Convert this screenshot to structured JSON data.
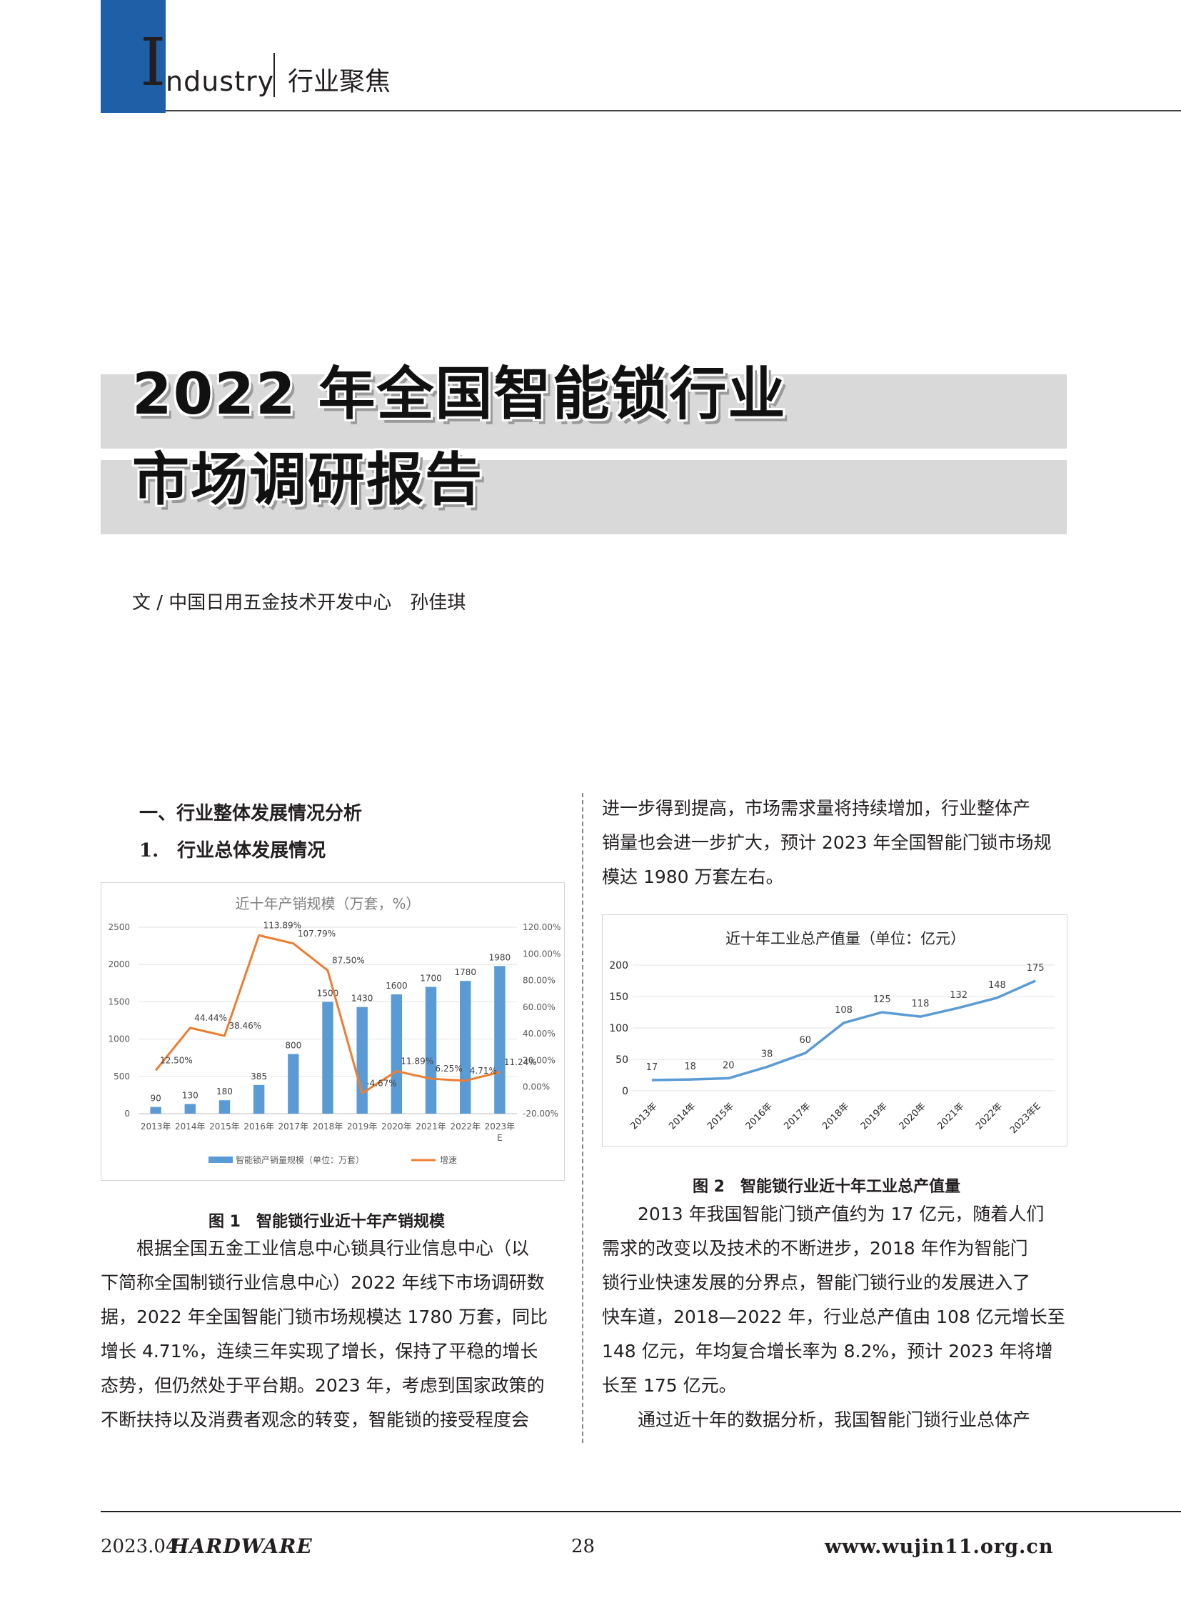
{
  "header": {
    "initial": "I",
    "word": "ndustry",
    "section": "行业聚焦"
  },
  "title": {
    "line1": "2022 年全国智能锁行业",
    "line2": "市场调研报告"
  },
  "byline": "文 / 中国日用五金技术开发中心　孙佳琪",
  "heading1": "一、行业整体发展情况分析",
  "heading2": "1.　行业总体发展情况",
  "left_body": [
    "　　根据全国五金工业信息中心锁具行业信息中心（以",
    "下简称全国制锁行业信息中心）2022 年线下市场调研数",
    "据，2022 年全国智能门锁市场规模达 1780 万套，同比",
    "增长 4.71%，连续三年实现了增长，保持了平稳的增长",
    "态势，但仍然处于平台期。2023 年，考虑到国家政策的",
    "不断扶持以及消费者观念的转变，智能锁的接受程度会"
  ],
  "right_body_top": [
    "进一步得到提高，市场需求量将持续增加，行业整体产",
    "销量也会进一步扩大，预计 2023 年全国智能门锁市场规",
    "模达 1980 万套左右。"
  ],
  "right_body_bottom": [
    "　　2013 年我国智能门锁产值约为 17 亿元，随着人们",
    "需求的改变以及技术的不断进步，2018 年作为智能门",
    "锁行业快速发展的分界点，智能门锁行业的发展进入了",
    "快车道，2018—2022 年，行业总产值由 108 亿元增长至",
    "148 亿元，年均复合增长率为 8.2%，预计 2023 年将增",
    "长至 175 亿元。",
    "　　通过近十年的数据分析，我国智能门锁行业总体产"
  ],
  "fig1_caption": "图 1　智能锁行业近十年产销规模",
  "fig2_caption": "图 2　智能锁行业近十年工业总产值量",
  "chart_data": [
    {
      "type": "bar",
      "title": "近十年产销规模（万套，%）",
      "categories": [
        "2013年",
        "2014年",
        "2015年",
        "2016年",
        "2017年",
        "2018年",
        "2019年",
        "2020年",
        "2021年",
        "2022年",
        "2023年E"
      ],
      "series": [
        {
          "name": "智能锁产销量规模（单位：万套）",
          "type": "bar",
          "axis": "left",
          "color": "#5b9bd5",
          "values": [
            90,
            130,
            180,
            385,
            800,
            1500,
            1430,
            1600,
            1700,
            1780,
            1980
          ]
        },
        {
          "name": "增速",
          "type": "line",
          "axis": "right",
          "color": "#ed7d31",
          "values": [
            null,
            44.44,
            38.46,
            113.89,
            107.79,
            87.5,
            -4.67,
            11.89,
            6.25,
            4.71,
            11.24
          ],
          "labels": [
            "12.50%",
            "44.44%",
            "38.46%",
            "113.89%",
            "107.79%",
            "87.50%",
            "-4.67%",
            "11.89%",
            "6.25%",
            "4.71%",
            "11.24%"
          ]
        }
      ],
      "ylim_left": [
        0,
        2500
      ],
      "yticks_left": [
        "0",
        "500",
        "1000",
        "1500",
        "2000",
        "2500"
      ],
      "ylim_right": [
        -20,
        120
      ],
      "yticks_right": [
        "-20.00%",
        "0.00%",
        "20.00%",
        "40.00%",
        "60.00%",
        "80.00%",
        "100.00%",
        "120.00%"
      ],
      "legend": "bottom"
    },
    {
      "type": "line",
      "title": "近十年工业总产值量（单位：亿元）",
      "categories": [
        "2013年",
        "2014年",
        "2015年",
        "2016年",
        "2017年",
        "2018年",
        "2019年",
        "2020年",
        "2021年",
        "2022年",
        "2023年E"
      ],
      "series": [
        {
          "color": "#5b9bd5",
          "values": [
            17,
            18,
            20,
            38,
            60,
            108,
            125,
            118,
            132,
            148,
            175
          ]
        }
      ],
      "ylim": [
        0,
        200
      ],
      "yticks": [
        "0",
        "50",
        "100",
        "150",
        "200"
      ]
    }
  ],
  "footer": {
    "date": "2023.04",
    "magazine": "HARDWARE",
    "page": "28",
    "url": "www.wujin11.org.cn"
  }
}
